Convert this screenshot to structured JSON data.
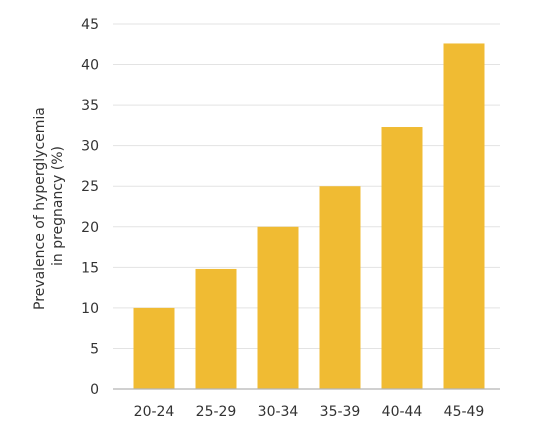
{
  "chart_data": {
    "type": "bar",
    "categories": [
      "20-24",
      "25-29",
      "30-34",
      "35-39",
      "40-44",
      "45-49"
    ],
    "values": [
      10,
      14.8,
      20,
      25,
      32.3,
      42.6
    ],
    "title": "",
    "xlabel": "",
    "ylabel_lines": [
      "Prevalence of hyperglycemia",
      "in pregnancy (%)"
    ],
    "ylim": [
      0,
      45
    ],
    "yticks": [
      0,
      5,
      10,
      15,
      20,
      25,
      30,
      35,
      40,
      45
    ],
    "grid": true,
    "bar_color": "#F0BB33"
  }
}
